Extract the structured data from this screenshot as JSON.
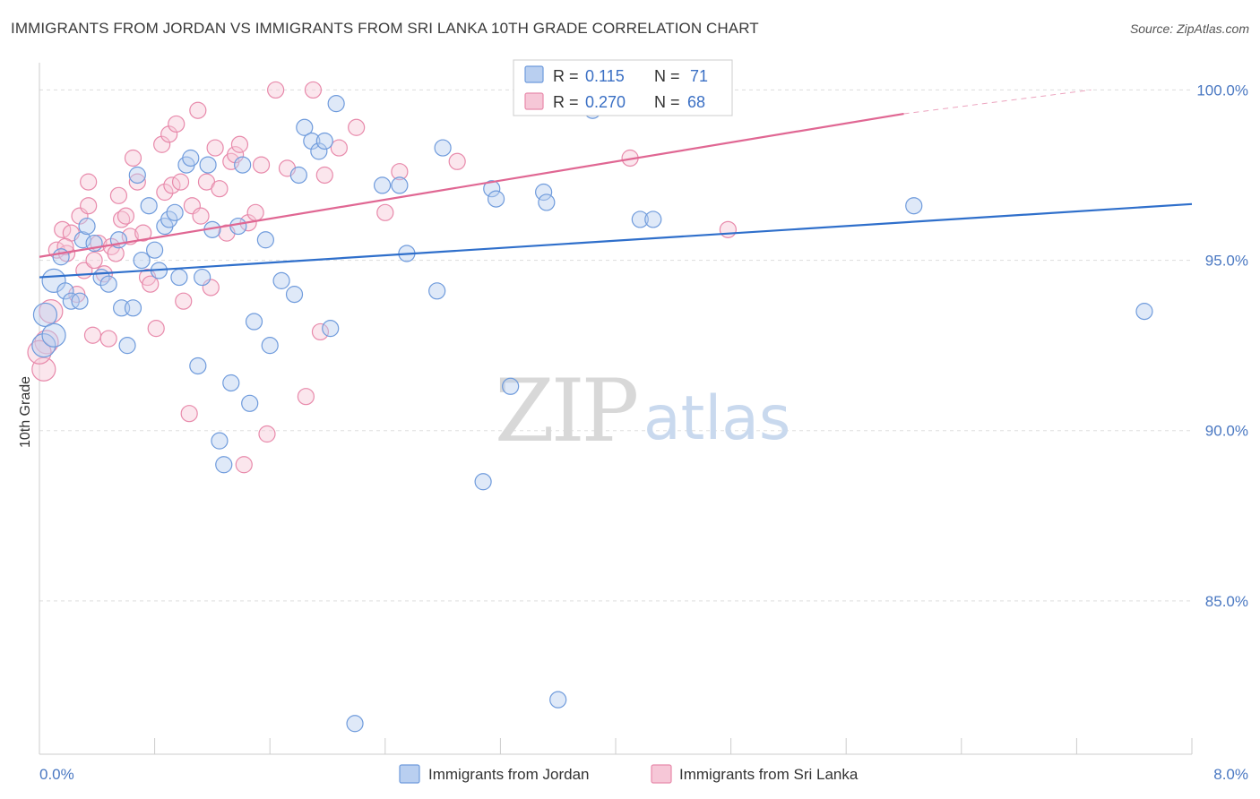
{
  "title": "IMMIGRANTS FROM JORDAN VS IMMIGRANTS FROM SRI LANKA 10TH GRADE CORRELATION CHART",
  "source": "Source: ZipAtlas.com",
  "watermark": {
    "zip": "ZIP",
    "atlas": "atlas"
  },
  "colors": {
    "jordan": "#6f9bdc",
    "jordan_fill": "#b9cff0",
    "jordan_line": "#2f6fcb",
    "srilanka": "#e88aab",
    "srilanka_fill": "#f6c7d7",
    "srilanka_line": "#e06793",
    "axis_text": "#4a78c2",
    "grid": "#dddddd"
  },
  "stats_box": {
    "rows": [
      {
        "r_label": "R = ",
        "r_value": "0.115",
        "n_label": "N = ",
        "n_value": "71"
      },
      {
        "r_label": "R = ",
        "r_value": "0.270",
        "n_label": "N = ",
        "n_value": "68"
      }
    ]
  },
  "chart_data": {
    "type": "scatter",
    "xlabel": "",
    "ylabel": "10th Grade",
    "xlim": [
      0,
      8
    ],
    "ylim": [
      80.5,
      100.8
    ],
    "x_tick_labels": [
      "0.0%",
      "8.0%"
    ],
    "y_ticks": [
      85,
      90,
      95,
      100
    ],
    "y_tick_labels": [
      "85.0%",
      "90.0%",
      "95.0%",
      "100.0%"
    ],
    "grid": true,
    "legend_position": "bottom-center",
    "series": [
      {
        "name": "Immigrants from Jordan",
        "trend": {
          "x": [
            0,
            8
          ],
          "y": [
            94.5,
            96.65
          ]
        },
        "points": [
          [
            0.03,
            92.5
          ],
          [
            0.04,
            93.4
          ],
          [
            0.1,
            94.4
          ],
          [
            0.15,
            95.1
          ],
          [
            0.18,
            94.1
          ],
          [
            0.22,
            93.8
          ],
          [
            0.28,
            93.8
          ],
          [
            0.3,
            95.6
          ],
          [
            0.33,
            96.0
          ],
          [
            0.38,
            95.5
          ],
          [
            0.43,
            94.5
          ],
          [
            0.48,
            94.3
          ],
          [
            0.55,
            95.6
          ],
          [
            0.57,
            93.6
          ],
          [
            0.61,
            92.5
          ],
          [
            0.65,
            93.6
          ],
          [
            0.68,
            97.5
          ],
          [
            0.71,
            95.0
          ],
          [
            0.76,
            96.6
          ],
          [
            0.8,
            95.3
          ],
          [
            0.83,
            94.7
          ],
          [
            0.87,
            96.0
          ],
          [
            0.9,
            96.2
          ],
          [
            0.94,
            96.4
          ],
          [
            0.97,
            94.5
          ],
          [
            1.02,
            97.8
          ],
          [
            1.05,
            98.0
          ],
          [
            1.1,
            91.9
          ],
          [
            1.13,
            94.5
          ],
          [
            1.17,
            97.8
          ],
          [
            1.2,
            95.9
          ],
          [
            1.25,
            89.7
          ],
          [
            1.28,
            89.0
          ],
          [
            1.33,
            91.4
          ],
          [
            1.38,
            96.0
          ],
          [
            1.41,
            97.8
          ],
          [
            1.46,
            90.8
          ],
          [
            1.49,
            93.2
          ],
          [
            1.57,
            95.6
          ],
          [
            1.6,
            92.5
          ],
          [
            1.68,
            94.4
          ],
          [
            1.77,
            94.0
          ],
          [
            1.8,
            97.5
          ],
          [
            1.84,
            98.9
          ],
          [
            1.89,
            98.5
          ],
          [
            1.94,
            98.2
          ],
          [
            1.98,
            98.5
          ],
          [
            2.02,
            93.0
          ],
          [
            2.06,
            99.6
          ],
          [
            2.19,
            81.4
          ],
          [
            2.38,
            97.2
          ],
          [
            2.5,
            97.2
          ],
          [
            2.55,
            95.2
          ],
          [
            2.76,
            94.1
          ],
          [
            2.8,
            98.3
          ],
          [
            3.08,
            88.5
          ],
          [
            3.14,
            97.1
          ],
          [
            3.17,
            96.8
          ],
          [
            3.27,
            91.3
          ],
          [
            3.5,
            97.0
          ],
          [
            3.52,
            96.7
          ],
          [
            3.6,
            82.1
          ],
          [
            3.68,
            100.0
          ],
          [
            3.84,
            99.4
          ],
          [
            4.0,
            100.0
          ],
          [
            4.17,
            96.2
          ],
          [
            4.26,
            96.2
          ],
          [
            4.57,
            99.8
          ],
          [
            6.07,
            96.6
          ],
          [
            7.67,
            93.5
          ],
          [
            0.1,
            92.8
          ]
        ]
      },
      {
        "name": "Immigrants from Sri Lanka",
        "trend": {
          "x": [
            0,
            6.0
          ],
          "y": [
            95.1,
            99.3
          ],
          "dashed_x": [
            6.0,
            7.3
          ],
          "dashed_y": [
            99.3,
            100.0
          ]
        },
        "points": [
          [
            0.03,
            91.8
          ],
          [
            0.05,
            92.6
          ],
          [
            0.08,
            93.5
          ],
          [
            0.12,
            95.3
          ],
          [
            0.16,
            95.9
          ],
          [
            0.19,
            95.2
          ],
          [
            0.22,
            95.8
          ],
          [
            0.26,
            94.0
          ],
          [
            0.28,
            96.3
          ],
          [
            0.31,
            94.7
          ],
          [
            0.34,
            96.6
          ],
          [
            0.37,
            92.8
          ],
          [
            0.38,
            95.0
          ],
          [
            0.41,
            95.5
          ],
          [
            0.45,
            94.6
          ],
          [
            0.48,
            92.7
          ],
          [
            0.5,
            95.4
          ],
          [
            0.53,
            95.2
          ],
          [
            0.55,
            96.9
          ],
          [
            0.57,
            96.2
          ],
          [
            0.6,
            96.3
          ],
          [
            0.63,
            95.7
          ],
          [
            0.65,
            98.0
          ],
          [
            0.68,
            97.3
          ],
          [
            0.72,
            95.8
          ],
          [
            0.75,
            94.5
          ],
          [
            0.77,
            94.3
          ],
          [
            0.81,
            93.0
          ],
          [
            0.85,
            98.4
          ],
          [
            0.87,
            97.0
          ],
          [
            0.9,
            98.7
          ],
          [
            0.92,
            97.2
          ],
          [
            0.95,
            99.0
          ],
          [
            0.98,
            97.3
          ],
          [
            1.0,
            93.8
          ],
          [
            1.04,
            90.5
          ],
          [
            1.06,
            96.6
          ],
          [
            1.1,
            99.4
          ],
          [
            1.12,
            96.3
          ],
          [
            1.16,
            97.3
          ],
          [
            1.19,
            94.2
          ],
          [
            1.22,
            98.3
          ],
          [
            1.25,
            97.1
          ],
          [
            1.3,
            95.8
          ],
          [
            1.33,
            97.9
          ],
          [
            1.36,
            98.1
          ],
          [
            1.39,
            98.4
          ],
          [
            1.42,
            89.0
          ],
          [
            1.45,
            96.1
          ],
          [
            1.5,
            96.4
          ],
          [
            1.54,
            97.8
          ],
          [
            1.58,
            89.9
          ],
          [
            1.64,
            100.0
          ],
          [
            1.72,
            97.7
          ],
          [
            1.85,
            91.0
          ],
          [
            1.9,
            100.0
          ],
          [
            1.95,
            92.9
          ],
          [
            1.98,
            97.5
          ],
          [
            2.08,
            98.3
          ],
          [
            2.2,
            98.9
          ],
          [
            2.4,
            96.4
          ],
          [
            2.5,
            97.6
          ],
          [
            2.9,
            97.9
          ],
          [
            4.1,
            98.0
          ],
          [
            4.78,
            95.9
          ],
          [
            0.0,
            92.3
          ],
          [
            0.18,
            95.4
          ],
          [
            0.34,
            97.3
          ]
        ]
      }
    ]
  },
  "legend": {
    "items": [
      {
        "label": "Immigrants from Jordan"
      },
      {
        "label": "Immigrants from Sri Lanka"
      }
    ]
  }
}
